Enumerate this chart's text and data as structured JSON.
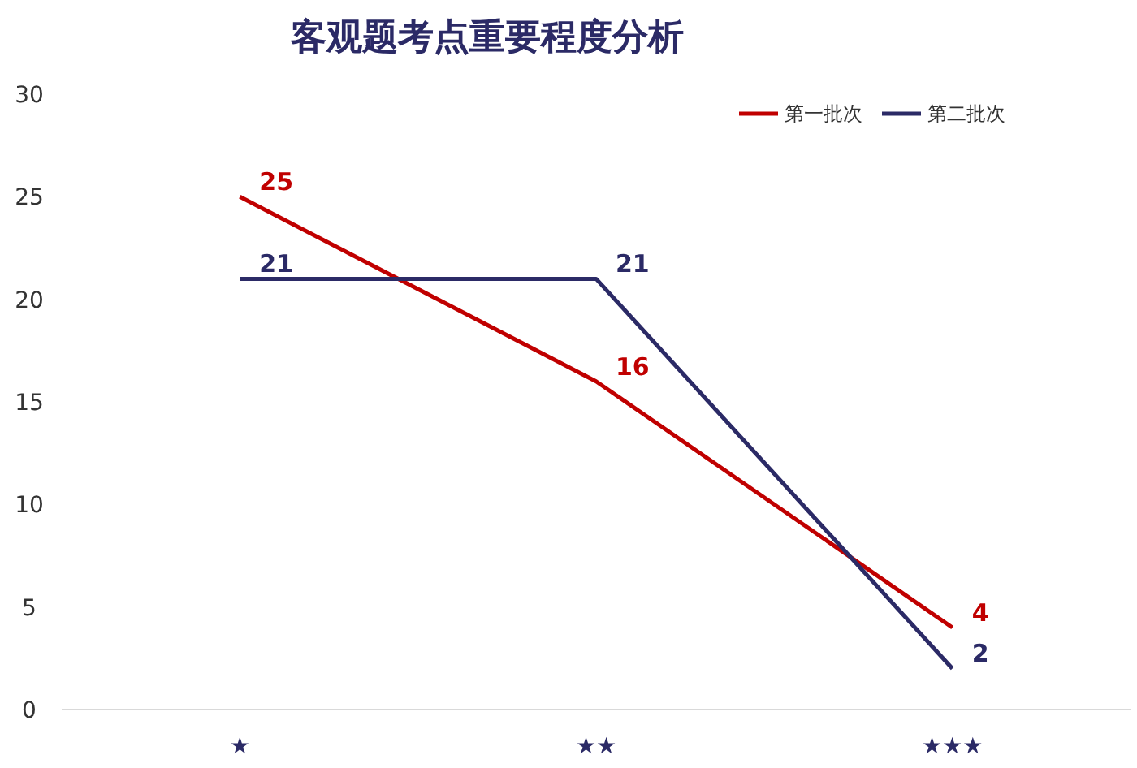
{
  "chart_data": {
    "type": "line",
    "title": "客观题考点重要程度分析",
    "categories": [
      "★",
      "★★",
      "★★★"
    ],
    "series": [
      {
        "name": "第一批次",
        "color": "#c00000",
        "values": [
          25,
          16,
          4
        ]
      },
      {
        "name": "第二批次",
        "color": "#2b2a66",
        "values": [
          21,
          21,
          2
        ]
      }
    ],
    "ylim": [
      0,
      30
    ],
    "yticks": [
      0,
      5,
      10,
      15,
      20,
      25,
      30
    ],
    "data_labels": true,
    "legend": "top right",
    "grid": false,
    "marker": "none",
    "line_style": "solid"
  }
}
